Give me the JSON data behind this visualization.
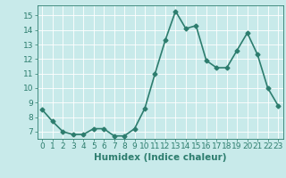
{
  "x": [
    0,
    1,
    2,
    3,
    4,
    5,
    6,
    7,
    8,
    9,
    10,
    11,
    12,
    13,
    14,
    15,
    16,
    17,
    18,
    19,
    20,
    21,
    22,
    23
  ],
  "y": [
    8.5,
    7.7,
    7.0,
    6.8,
    6.8,
    7.2,
    7.2,
    6.7,
    6.7,
    7.2,
    8.6,
    11.0,
    13.3,
    15.3,
    14.1,
    14.3,
    11.9,
    11.4,
    11.4,
    12.6,
    13.8,
    12.3,
    10.0,
    8.8
  ],
  "line_color": "#2d7d6e",
  "marker": "D",
  "marker_size": 2.5,
  "bg_color": "#c8eaea",
  "grid_color": "#ffffff",
  "xlabel": "Humidex (Indice chaleur)",
  "ylim": [
    6.5,
    15.7
  ],
  "xlim": [
    -0.5,
    23.5
  ],
  "yticks": [
    7,
    8,
    9,
    10,
    11,
    12,
    13,
    14,
    15
  ],
  "xticks": [
    0,
    1,
    2,
    3,
    4,
    5,
    6,
    7,
    8,
    9,
    10,
    11,
    12,
    13,
    14,
    15,
    16,
    17,
    18,
    19,
    20,
    21,
    22,
    23
  ],
  "xlabel_fontsize": 7.5,
  "tick_fontsize": 6.5,
  "line_width": 1.2
}
